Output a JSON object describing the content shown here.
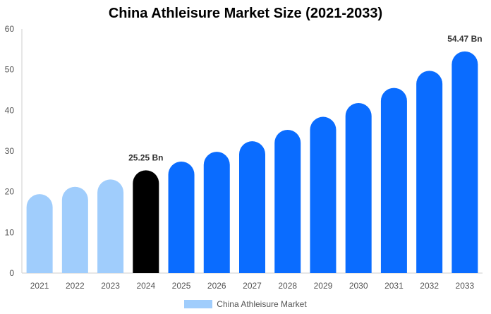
{
  "chart_data": {
    "type": "bar",
    "title": "China Athleisure Market Size (2021-2033)",
    "xlabel": "",
    "ylabel": "",
    "categories": [
      "2021",
      "2022",
      "2023",
      "2024",
      "2025",
      "2026",
      "2027",
      "2028",
      "2029",
      "2030",
      "2031",
      "2032",
      "2033"
    ],
    "series": [
      {
        "name": "China Athleisure Market",
        "values": [
          19.4,
          21.2,
          23.0,
          25.25,
          27.4,
          29.8,
          32.4,
          35.2,
          38.4,
          41.8,
          45.5,
          49.7,
          54.47
        ]
      }
    ],
    "ylim": [
      0,
      60
    ],
    "yticks": [
      0,
      10,
      20,
      30,
      40,
      50,
      60
    ],
    "data_labels": [
      {
        "category": "2024",
        "text": "25.25 Bn"
      },
      {
        "category": "2033",
        "text": "54.47 Bn"
      }
    ],
    "colors": {
      "historical": "#a0cdfc",
      "current": "#000000",
      "forecast": "#0a6cff",
      "legend": "#a0cdfc",
      "axis": "#cccccc",
      "tick_text": "#555555"
    },
    "grid": false,
    "legend_position": "bottom-center"
  }
}
